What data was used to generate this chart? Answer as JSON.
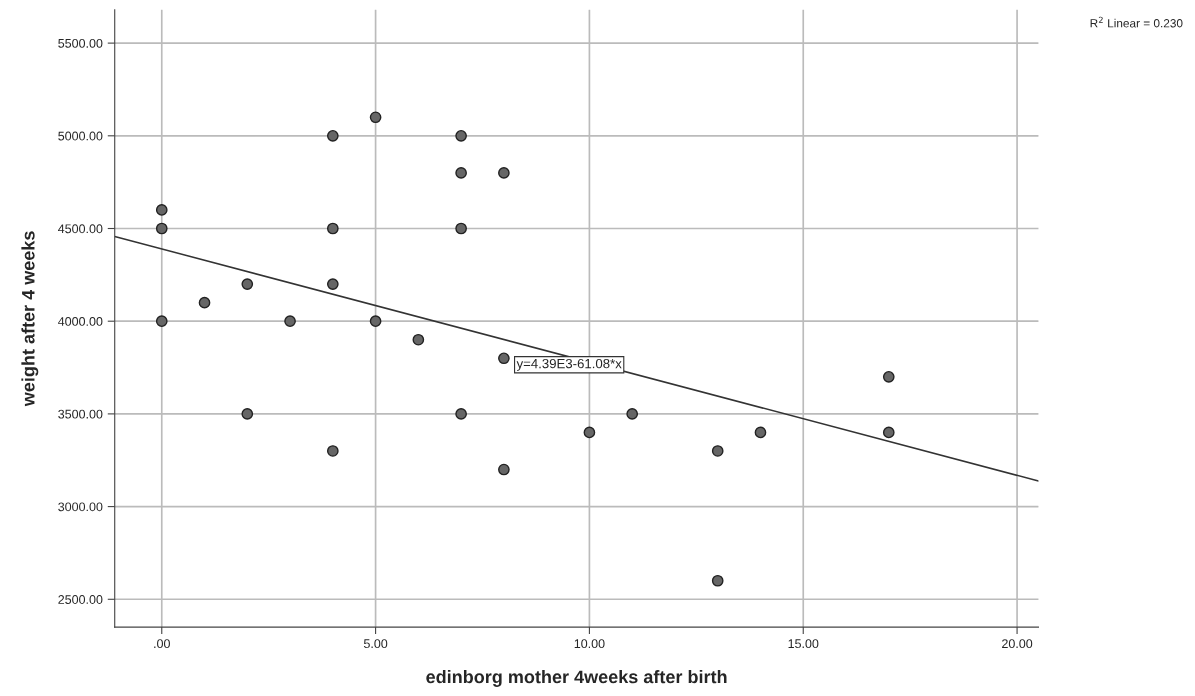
{
  "chart_data": {
    "type": "scatter",
    "xlabel": "edinborg mother 4weeks after birth",
    "ylabel": "weight after 4 weeks",
    "xlim": [
      -1.1,
      20.5
    ],
    "ylim": [
      2350,
      5680
    ],
    "xticks": [
      {
        "value": 0,
        "label": ".00"
      },
      {
        "value": 5,
        "label": "5.00"
      },
      {
        "value": 10,
        "label": "10.00"
      },
      {
        "value": 15,
        "label": "15.00"
      },
      {
        "value": 20,
        "label": "20.00"
      }
    ],
    "yticks": [
      {
        "value": 2500,
        "label": "2500.00"
      },
      {
        "value": 3000,
        "label": "3000.00"
      },
      {
        "value": 3500,
        "label": "3500.00"
      },
      {
        "value": 4000,
        "label": "4000.00"
      },
      {
        "value": 4500,
        "label": "4500.00"
      },
      {
        "value": 5000,
        "label": "5000.00"
      },
      {
        "value": 5500,
        "label": "5500.00"
      }
    ],
    "grid": true,
    "series": [
      {
        "marker": "circle",
        "color": "#666666",
        "x": [
          0,
          0,
          0,
          1,
          2,
          2,
          3,
          4,
          4,
          4,
          4,
          5,
          5,
          6,
          7,
          7,
          7,
          7,
          8,
          8,
          8,
          10,
          11,
          13,
          13,
          14,
          17,
          17
        ],
        "values": [
          4600,
          4500,
          4000,
          4100,
          4200,
          3500,
          4000,
          5000,
          4500,
          4200,
          3300,
          5100,
          4000,
          3900,
          5000,
          4800,
          4500,
          3500,
          4800,
          3800,
          3200,
          3400,
          3500,
          3300,
          2600,
          3400,
          3700,
          3400
        ]
      },
      {
        "type": "line",
        "color": "#333333",
        "x": [
          -1.1,
          20.5
        ],
        "values": [
          4457,
          3138
        ]
      }
    ],
    "annotations": [
      "y=4.39E3-61.08*x",
      "R$^{2}$ Linear = 0.230"
    ]
  }
}
